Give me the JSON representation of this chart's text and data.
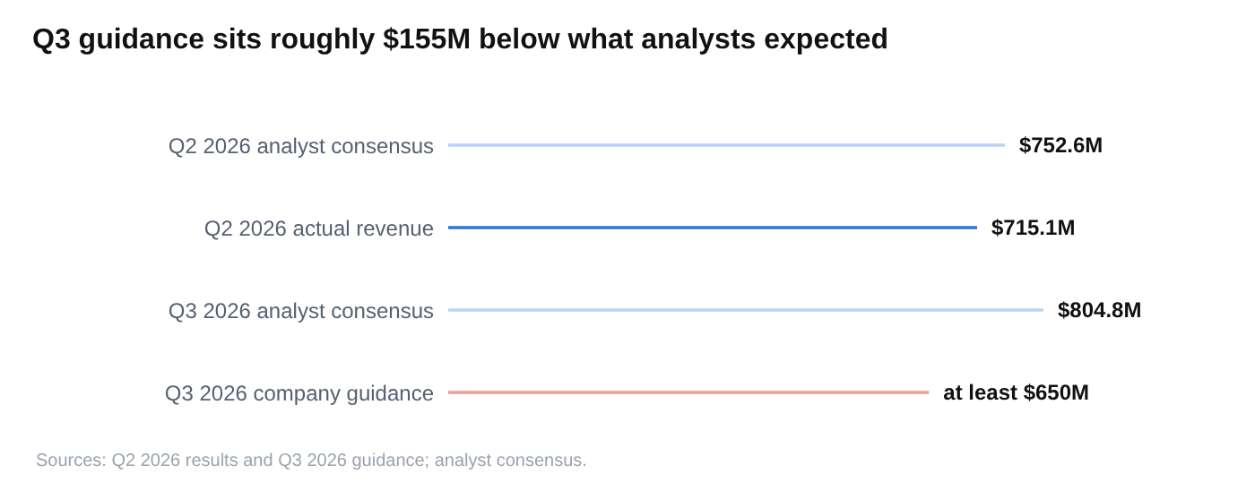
{
  "chart_data": {
    "type": "bar",
    "orientation": "horizontal",
    "title": "Q3 guidance sits roughly $155M below what analysts expected",
    "categories": [
      "Q2 2026 analyst consensus",
      "Q2 2026 actual revenue",
      "Q3 2026 analyst consensus",
      "Q3 2026 company guidance"
    ],
    "values": [
      752.6,
      715.1,
      804.8,
      650
    ],
    "colors": [
      "#b6d5f4",
      "#2a78d6",
      "#b6d5f4",
      "#f09a9a"
    ],
    "value_labels": [
      "$752.6M",
      "$715.1M",
      "$804.8M",
      "at least $650M"
    ],
    "annotations": [
      "Sources: Q2 2026 results and Q3 2026 guidance; analyst consensus."
    ]
  }
}
